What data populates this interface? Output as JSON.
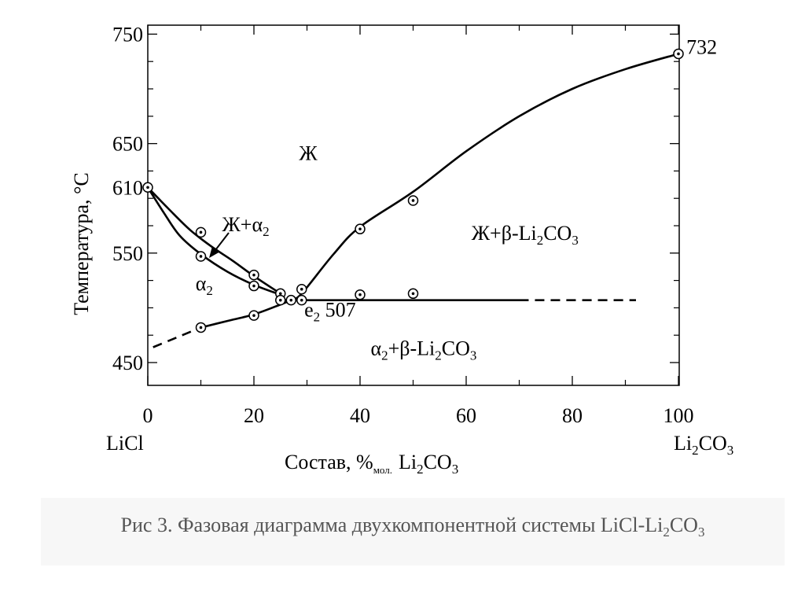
{
  "chart_data": {
    "type": "line",
    "title": "",
    "xlabel": "Состав, %",
    "xlabel_sub": "мол.",
    "xlabel_suffix": "Li",
    "xlabel_sub2": "2",
    "xlabel_end": "CO",
    "xlabel_sub3": "3",
    "ylabel": "Температура, °С",
    "xlim": [
      0,
      100
    ],
    "ylim": [
      440,
      755
    ],
    "x_ticks": [
      0,
      20,
      40,
      60,
      80,
      100
    ],
    "y_ticks": [
      450,
      550,
      650,
      750
    ],
    "y_extra_label": {
      "value": 610,
      "text": "610"
    },
    "endpoint_left": "LiCl",
    "endpoint_right": {
      "main": "Li",
      "sub": "2",
      "tail": "CO",
      "sub2": "3"
    },
    "series": [
      {
        "style": "solid",
        "x": [
          0,
          4,
          8,
          12,
          16,
          20,
          25
        ],
        "y": [
          610,
          590,
          571,
          556,
          543,
          529,
          513
        ]
      },
      {
        "style": "solid",
        "x": [
          0,
          3,
          6,
          10,
          15,
          20,
          25
        ],
        "y": [
          610,
          587,
          566,
          549,
          533,
          521,
          512
        ]
      },
      {
        "style": "solid",
        "x": [
          10,
          15,
          20,
          25,
          27
        ],
        "y": [
          482,
          488,
          494,
          503,
          507
        ]
      },
      {
        "style": "dashed",
        "x": [
          1,
          4,
          7,
          10
        ],
        "y": [
          464,
          470,
          476,
          482
        ]
      },
      {
        "style": "solid",
        "x": [
          25,
          70
        ],
        "y": [
          507,
          507
        ]
      },
      {
        "style": "dashed",
        "x": [
          70,
          92
        ],
        "y": [
          507,
          507
        ]
      },
      {
        "style": "solid",
        "x": [
          27,
          29,
          35,
          40,
          50,
          60,
          70,
          80,
          90,
          100
        ],
        "y": [
          507,
          513,
          549,
          574,
          606,
          643,
          675,
          700,
          718,
          732
        ]
      }
    ],
    "points": [
      {
        "x": 0,
        "y": 610
      },
      {
        "x": 10,
        "y": 569
      },
      {
        "x": 10,
        "y": 547
      },
      {
        "x": 20,
        "y": 530
      },
      {
        "x": 20,
        "y": 520
      },
      {
        "x": 25,
        "y": 513
      },
      {
        "x": 25,
        "y": 507
      },
      {
        "x": 27,
        "y": 507
      },
      {
        "x": 29,
        "y": 507
      },
      {
        "x": 29,
        "y": 517
      },
      {
        "x": 40,
        "y": 512
      },
      {
        "x": 40,
        "y": 572
      },
      {
        "x": 50,
        "y": 513
      },
      {
        "x": 50,
        "y": 598
      },
      {
        "x": 10,
        "y": 482
      },
      {
        "x": 20,
        "y": 493
      },
      {
        "x": 100,
        "y": 732
      }
    ],
    "annotations": [
      {
        "id": "liquid",
        "parts": [
          {
            "t": "Ж"
          }
        ],
        "x": 28.5,
        "y": 635
      },
      {
        "id": "liq-alpha",
        "parts": [
          {
            "t": "Ж+α"
          },
          {
            "t": "2",
            "sub": true
          }
        ],
        "x": 14,
        "y": 570
      },
      {
        "id": "liq-beta",
        "parts": [
          {
            "t": "Ж+β-Li"
          },
          {
            "t": "2",
            "sub": true
          },
          {
            "t": "CO"
          },
          {
            "t": "3",
            "sub": true
          }
        ],
        "x": 61,
        "y": 562
      },
      {
        "id": "alpha2",
        "parts": [
          {
            "t": "α"
          },
          {
            "t": "2",
            "sub": true
          }
        ],
        "x": 9,
        "y": 516
      },
      {
        "id": "eutectic",
        "parts": [
          {
            "t": "e"
          },
          {
            "t": "2",
            "sub": true
          },
          {
            "t": " 507"
          }
        ],
        "x": 29.5,
        "y": 492
      },
      {
        "id": "alpha-beta",
        "parts": [
          {
            "t": "α"
          },
          {
            "t": "2",
            "sub": true
          },
          {
            "t": "+β-Li"
          },
          {
            "t": "2",
            "sub": true
          },
          {
            "t": "CO"
          },
          {
            "t": "3",
            "sub": true
          }
        ],
        "x": 42,
        "y": 457
      },
      {
        "id": "melt-732",
        "parts": [
          {
            "t": "732"
          }
        ],
        "x": 101.5,
        "y": 732
      }
    ]
  },
  "caption": {
    "text": "Рис 3. Фазовая диаграмма двухкомпонентной системы LiCl-Li",
    "sub": "2",
    "tail": "CO",
    "sub2": "3"
  }
}
